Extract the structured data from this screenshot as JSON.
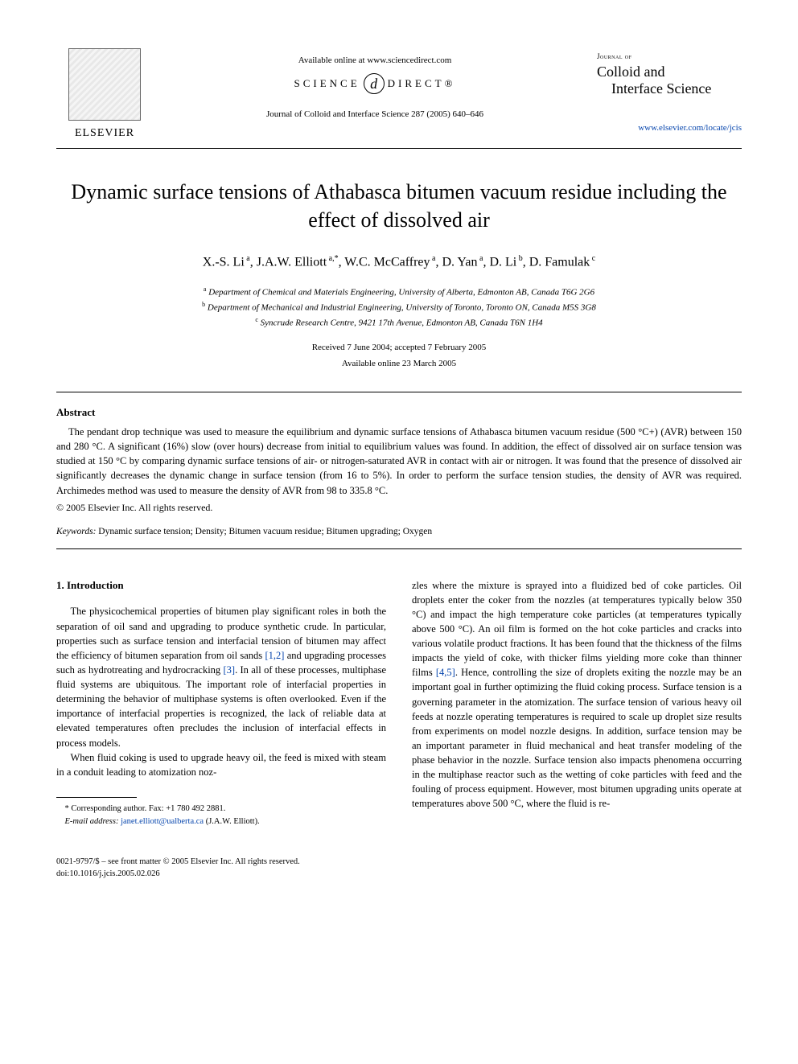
{
  "header": {
    "publisher": "ELSEVIER",
    "available_online": "Available online at www.sciencedirect.com",
    "science": "SCIENCE",
    "direct": "DIRECT®",
    "sd_glyph": "d",
    "citation": "Journal of Colloid and Interface Science 287 (2005) 640–646",
    "journal_small": "Journal of",
    "journal_name_l1": "Colloid and",
    "journal_name_l2": "Interface Science",
    "journal_url": "www.elsevier.com/locate/jcis"
  },
  "title": "Dynamic surface tensions of Athabasca bitumen vacuum residue including the effect of dissolved air",
  "authors_html": "X.-S. Li<sup> a</sup>, J.A.W. Elliott<sup> a,*</sup>, W.C. McCaffrey<sup> a</sup>, D. Yan<sup> a</sup>, D. Li<sup> b</sup>, D. Famulak<sup> c</sup>",
  "affiliations": [
    {
      "sup": "a",
      "text": "Department of Chemical and Materials Engineering, University of Alberta, Edmonton AB, Canada T6G 2G6"
    },
    {
      "sup": "b",
      "text": "Department of Mechanical and Industrial Engineering, University of Toronto, Toronto ON, Canada M5S 3G8"
    },
    {
      "sup": "c",
      "text": "Syncrude Research Centre, 9421 17th Avenue, Edmonton AB, Canada T6N 1H4"
    }
  ],
  "dates": {
    "received_accepted": "Received 7 June 2004; accepted 7 February 2005",
    "available": "Available online 23 March 2005"
  },
  "abstract": {
    "heading": "Abstract",
    "body": "The pendant drop technique was used to measure the equilibrium and dynamic surface tensions of Athabasca bitumen vacuum residue (500 °C+) (AVR) between 150 and 280 °C. A significant (16%) slow (over hours) decrease from initial to equilibrium values was found. In addition, the effect of dissolved air on surface tension was studied at 150 °C by comparing dynamic surface tensions of air- or nitrogen-saturated AVR in contact with air or nitrogen. It was found that the presence of dissolved air significantly decreases the dynamic change in surface tension (from 16 to 5%). In order to perform the surface tension studies, the density of AVR was required. Archimedes method was used to measure the density of AVR from 98 to 335.8 °C.",
    "copyright": "© 2005 Elsevier Inc. All rights reserved."
  },
  "keywords": {
    "label": "Keywords:",
    "text": "Dynamic surface tension; Density; Bitumen vacuum residue; Bitumen upgrading; Oxygen"
  },
  "intro": {
    "heading": "1. Introduction",
    "left_p1_a": "The physicochemical properties of bitumen play significant roles in both the separation of oil sand and upgrading to produce synthetic crude. In particular, properties such as surface tension and interfacial tension of bitumen may affect the efficiency of bitumen separation from oil sands ",
    "cite1": "[1,2]",
    "left_p1_b": " and upgrading processes such as hydrotreating and hydrocracking ",
    "cite2": "[3]",
    "left_p1_c": ". In all of these processes, multiphase fluid systems are ubiquitous. The important role of interfacial properties in determining the behavior of multiphase systems is often overlooked. Even if the importance of interfacial properties is recognized, the lack of reliable data at elevated temperatures often precludes the inclusion of interfacial effects in process models.",
    "left_p2": "When fluid coking is used to upgrade heavy oil, the feed is mixed with steam in a conduit leading to atomization noz-",
    "right_p1_a": "zles where the mixture is sprayed into a fluidized bed of coke particles. Oil droplets enter the coker from the nozzles (at temperatures typically below 350 °C) and impact the high temperature coke particles (at temperatures typically above 500 °C). An oil film is formed on the hot coke particles and cracks into various volatile product fractions. It has been found that the thickness of the films impacts the yield of coke, with thicker films yielding more coke than thinner films ",
    "cite3": "[4,5]",
    "right_p1_b": ". Hence, controlling the size of droplets exiting the nozzle may be an important goal in further optimizing the fluid coking process. Surface tension is a governing parameter in the atomization. The surface tension of various heavy oil feeds at nozzle operating temperatures is required to scale up droplet size results from experiments on model nozzle designs. In addition, surface tension may be an important parameter in fluid mechanical and heat transfer modeling of the phase behavior in the nozzle. Surface tension also impacts phenomena occurring in the multiphase reactor such as the wetting of coke particles with feed and the fouling of process equipment. However, most bitumen upgrading units operate at temperatures above 500 °C, where the fluid is re-"
  },
  "footnote": {
    "corr_label": "* Corresponding author. Fax: +1 780 492 2881.",
    "email_label": "E-mail address:",
    "email": "janet.elliott@ualberta.ca",
    "email_paren": "(J.A.W. Elliott)."
  },
  "footer": {
    "line1": "0021-9797/$ – see front matter © 2005 Elsevier Inc. All rights reserved.",
    "line2": "doi:10.1016/j.jcis.2005.02.026"
  },
  "colors": {
    "link": "#0645ad",
    "text": "#000000",
    "bg": "#ffffff"
  }
}
